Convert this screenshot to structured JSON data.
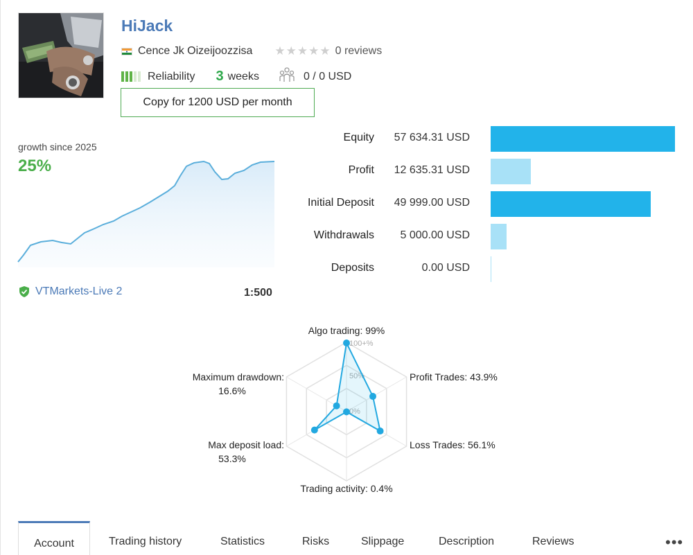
{
  "profile": {
    "name": "HiJack",
    "owner": "Cence Jk Oizeijoozzisa",
    "reviews": "0 reviews",
    "reliability_label": "Reliability",
    "weeks_number": "3",
    "weeks_unit": "weeks",
    "subscribers": "0 / 0 USD",
    "copy_button": "Copy for 1200 USD per month",
    "avatar_icon": "profile-photo"
  },
  "growth": {
    "label": "growth since 2025",
    "value": "25%"
  },
  "account": {
    "broker": "VTMarkets-Live 2",
    "leverage": "1:500"
  },
  "stats": [
    {
      "label": "Equity",
      "value": "57 634.31 USD",
      "amount": 57634.31,
      "color": "#22b3ea"
    },
    {
      "label": "Profit",
      "value": "12 635.31 USD",
      "amount": 12635.31,
      "color": "#a8e1f7"
    },
    {
      "label": "Initial Deposit",
      "value": "49 999.00 USD",
      "amount": 49999.0,
      "color": "#22b3ea"
    },
    {
      "label": "Withdrawals",
      "value": "5 000.00 USD",
      "amount": 5000.0,
      "color": "#a8e1f7"
    },
    {
      "label": "Deposits",
      "value": "0.00 USD",
      "amount": 0.0,
      "color": "#22b3ea"
    }
  ],
  "chart_data": {
    "type": "radar",
    "scale_labels": [
      "100+%",
      "50%",
      "0%"
    ],
    "axes": [
      {
        "label": "Algo trading: 99%",
        "value": 99
      },
      {
        "label": "Profit Trades: 43.9%",
        "value": 43.9
      },
      {
        "label": "Loss Trades: 56.1%",
        "value": 56.1
      },
      {
        "label": "Trading activity: 0.4%",
        "value": 0.4
      },
      {
        "label": "Max deposit load:",
        "label2": "53.3%",
        "value": 53.3
      },
      {
        "label": "Maximum drawdown:",
        "label2": "16.6%",
        "value": 16.6
      }
    ]
  },
  "tabs": [
    "Account",
    "Trading history",
    "Statistics",
    "Risks",
    "Slippage",
    "Description",
    "Reviews"
  ],
  "more_menu": "•••"
}
